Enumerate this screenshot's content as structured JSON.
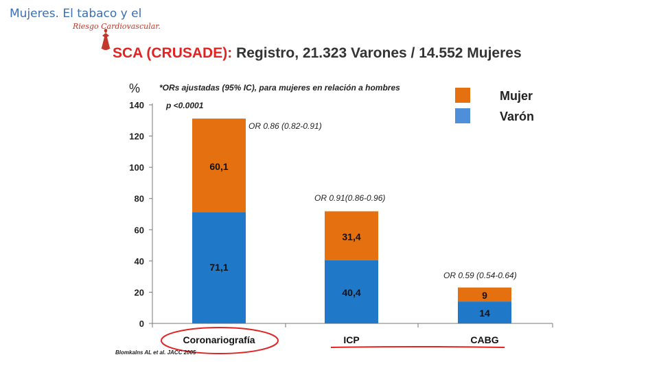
{
  "header": {
    "title": "Mujeres. El tabaco y el",
    "subtitle_script": "Riesgo Cardiovascular."
  },
  "slide_title": {
    "part1": "SCA (CRUSADE):",
    "part2": "Registro, 21.323 Varones / 14.552 Mujeres"
  },
  "chart_data": {
    "type": "bar",
    "stacked": true,
    "title": "",
    "xlabel": "",
    "ylabel": "%",
    "ylim": [
      0,
      140
    ],
    "yticks": [
      0,
      20,
      40,
      60,
      80,
      100,
      120,
      140
    ],
    "categories": [
      "Coronariografía",
      "ICP",
      "CABG"
    ],
    "series": [
      {
        "name": "Varón",
        "values": [
          71.1,
          40.4,
          14
        ],
        "labels": [
          "71,1",
          "40,4",
          "14"
        ],
        "color": "#1f78c8"
      },
      {
        "name": "Mujer",
        "values": [
          60.1,
          31.4,
          9
        ],
        "labels": [
          "60,1",
          "31,4",
          "9"
        ],
        "color": "#e5700f"
      }
    ],
    "odds_ratios": [
      "OR 0.86 (0.82-0.91)",
      "OR 0.91(0.86-0.96)",
      "OR 0.59 (0.54-0.64)"
    ],
    "note": "*ORs ajustadas (95% IC), para mujeres en relación a hombres",
    "p_value": "p <0.0001",
    "legend": [
      {
        "name": "Mujer",
        "color": "#e5700f"
      },
      {
        "name": "Varón",
        "color": "#4f8fda"
      }
    ],
    "legend_position": "top-right",
    "grid": false
  },
  "citation": "Blomkalns AL et al. JACC 2005",
  "annotation_color": "#e02424"
}
